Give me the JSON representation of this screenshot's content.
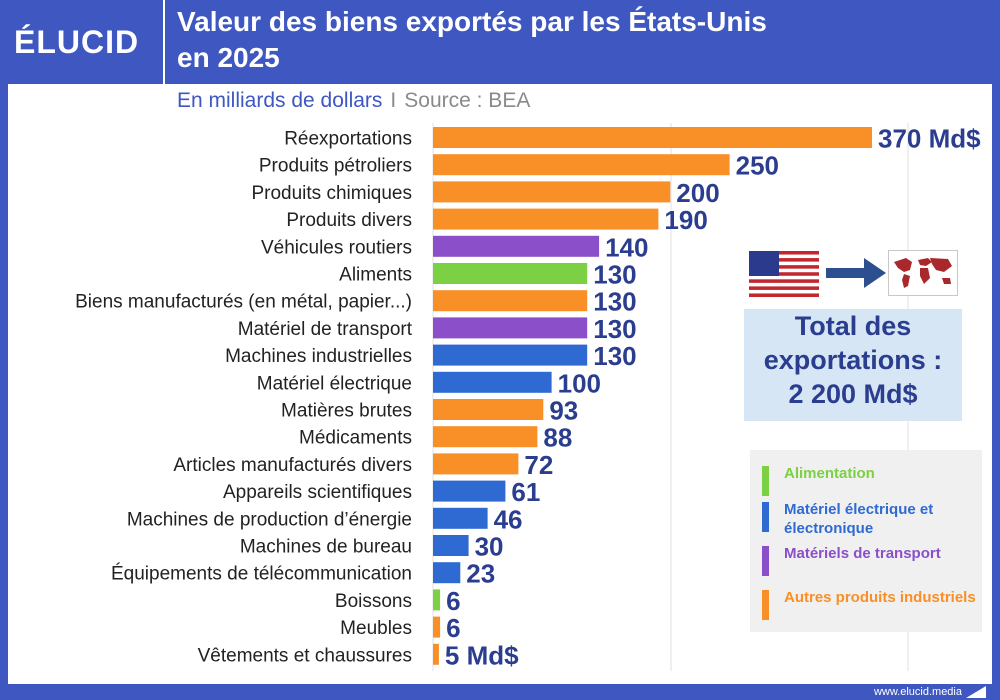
{
  "header": {
    "logo": "ÉLUCID",
    "title_line1": "Valeur des biens exportés par les États-Unis",
    "title_line2": "en 2025",
    "unit": "En milliards de dollars",
    "separator": "I",
    "source": "Source : BEA"
  },
  "total": {
    "line1": "Total des",
    "line2": "exportations :",
    "line3": "2 200 Md$"
  },
  "legend": {
    "items": [
      {
        "label": "Alimentation",
        "color": "#7bd043"
      },
      {
        "label": "Matériel électrique et électronique",
        "color": "#2f6ad2"
      },
      {
        "label": "Matériels de transport",
        "color": "#8a4fc9"
      },
      {
        "label": "Autres produits industriels",
        "color": "#f98f27"
      }
    ]
  },
  "footer": {
    "url": "www.elucid.media"
  },
  "icons": [
    "us-flag-icon",
    "arrow-right-icon",
    "world-map-icon",
    "elucid-logo-mark-icon"
  ],
  "colors": {
    "brand": "#3e57c1",
    "value_text": "#2a3d8f",
    "orange": "#f98f27",
    "purple": "#8a4fc9",
    "green": "#7bd043",
    "blue": "#2f6ad2"
  },
  "chart_data": {
    "type": "bar",
    "orientation": "horizontal",
    "title": "Valeur des biens exportés par les États-Unis en 2025",
    "xlabel": "",
    "ylabel": "",
    "xlim": [
      0,
      370
    ],
    "grid": true,
    "categories": [
      "Réexportations",
      "Produits pétroliers",
      "Produits chimiques",
      "Produits divers",
      "Véhicules routiers",
      "Aliments",
      "Biens manufacturés (en métal, papier...)",
      "Matériel de transport",
      "Machines industrielles",
      "Matériel électrique",
      "Matières brutes",
      "Médicaments",
      "Articles manufacturés divers",
      "Appareils scientifiques",
      "Machines de production d’énergie",
      "Machines de bureau",
      "Équipements de télécommunication",
      "Boissons",
      "Meubles",
      "Vêtements et chaussures"
    ],
    "values": [
      370,
      250,
      200,
      190,
      140,
      130,
      130,
      130,
      130,
      100,
      93,
      88,
      72,
      61,
      46,
      30,
      23,
      6,
      6,
      5
    ],
    "value_labels": [
      "370 Md$",
      "250",
      "200",
      "190",
      "140",
      "130",
      "130",
      "130",
      "130",
      "100",
      "93",
      "88",
      "72",
      "61",
      "46",
      "30",
      "23",
      "6",
      "6",
      "5 Md$"
    ],
    "colors": [
      "#f98f27",
      "#f98f27",
      "#f98f27",
      "#f98f27",
      "#8a4fc9",
      "#7bd043",
      "#f98f27",
      "#8a4fc9",
      "#2f6ad2",
      "#2f6ad2",
      "#f98f27",
      "#f98f27",
      "#f98f27",
      "#2f6ad2",
      "#2f6ad2",
      "#2f6ad2",
      "#2f6ad2",
      "#7bd043",
      "#f98f27",
      "#f98f27"
    ]
  }
}
